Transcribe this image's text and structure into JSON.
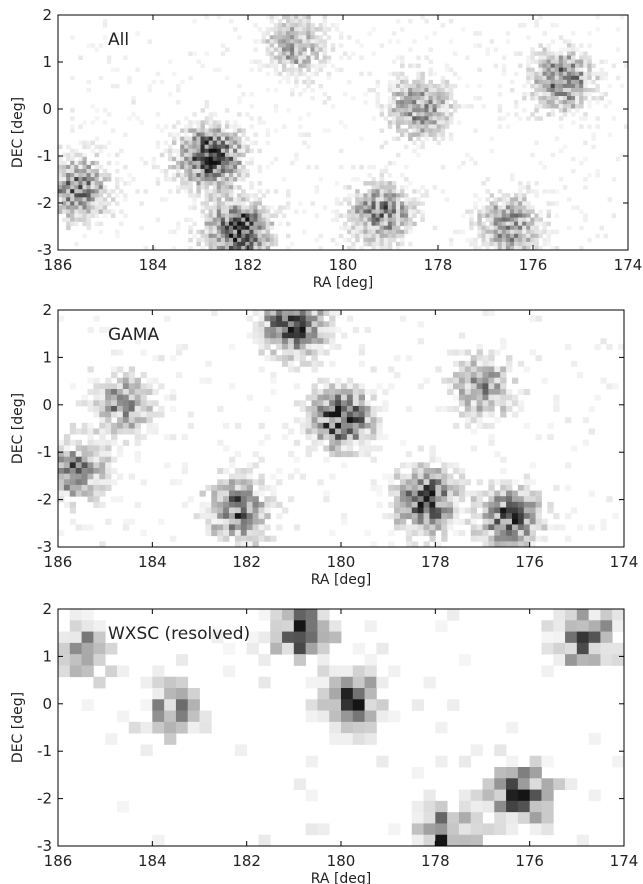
{
  "chart_data": [
    {
      "type": "heatmap",
      "panel_label": "All",
      "xlabel": "RA [deg]",
      "ylabel": "DEC [deg]",
      "xlim": [
        186,
        174
      ],
      "ylim": [
        -3,
        2
      ],
      "xticks": [
        186,
        184,
        182,
        180,
        178,
        176,
        174
      ],
      "yticks": [
        2,
        1,
        0,
        -1,
        -2,
        -3
      ],
      "grid": false,
      "bins": [
        140,
        58
      ],
      "cmap": [
        "#ffffff",
        "#111111"
      ],
      "seed": 7,
      "clusters": [
        {
          "ra": 182.8,
          "dec": -1.0,
          "w": 1.0
        },
        {
          "ra": 182.2,
          "dec": -2.6,
          "w": 1.0
        },
        {
          "ra": 185.6,
          "dec": -1.7,
          "w": 0.7
        },
        {
          "ra": 179.2,
          "dec": -2.2,
          "w": 0.7
        },
        {
          "ra": 176.5,
          "dec": -2.5,
          "w": 0.6
        },
        {
          "ra": 175.4,
          "dec": 0.6,
          "w": 0.7
        },
        {
          "ra": 178.4,
          "dec": 0.0,
          "w": 0.6
        },
        {
          "ra": 181.0,
          "dec": 1.4,
          "w": 0.5
        }
      ]
    },
    {
      "type": "heatmap",
      "panel_label": "GAMA",
      "xlabel": "RA [deg]",
      "ylabel": "DEC [deg]",
      "xlim": [
        186,
        174
      ],
      "ylim": [
        -3,
        2
      ],
      "xticks": [
        186,
        184,
        182,
        180,
        178,
        176,
        174
      ],
      "yticks": [
        2,
        1,
        0,
        -1,
        -2,
        -3
      ],
      "grid": false,
      "bins": [
        96,
        42
      ],
      "cmap": [
        "#ffffff",
        "#141414"
      ],
      "seed": 21,
      "clusters": [
        {
          "ra": 181.0,
          "dec": 1.7,
          "w": 1.0
        },
        {
          "ra": 180.0,
          "dec": -0.3,
          "w": 1.0
        },
        {
          "ra": 178.2,
          "dec": -2.0,
          "w": 1.0
        },
        {
          "ra": 176.4,
          "dec": -2.4,
          "w": 0.9
        },
        {
          "ra": 182.2,
          "dec": -2.2,
          "w": 0.8
        },
        {
          "ra": 185.6,
          "dec": -1.4,
          "w": 0.7
        },
        {
          "ra": 177.0,
          "dec": 0.4,
          "w": 0.6
        },
        {
          "ra": 184.6,
          "dec": 0.0,
          "w": 0.6
        }
      ]
    },
    {
      "type": "heatmap",
      "panel_label": "WXSC (resolved)",
      "xlabel": "RA [deg]",
      "ylabel": "DEC [deg]",
      "xlim": [
        186,
        174
      ],
      "ylim": [
        -3,
        2
      ],
      "xticks": [
        186,
        184,
        182,
        180,
        178,
        176,
        174
      ],
      "yticks": [
        2,
        1,
        0,
        -1,
        -2,
        -3
      ],
      "grid": false,
      "bins": [
        48,
        21
      ],
      "cmap": [
        "#ffffff",
        "#151515"
      ],
      "seed": 5,
      "clusters": [
        {
          "ra": 180.8,
          "dec": 1.6,
          "w": 1.0
        },
        {
          "ra": 179.8,
          "dec": 0.1,
          "w": 0.9
        },
        {
          "ra": 176.2,
          "dec": -1.9,
          "w": 1.0
        },
        {
          "ra": 177.8,
          "dec": -2.8,
          "w": 0.8
        },
        {
          "ra": 174.8,
          "dec": 1.4,
          "w": 0.8
        },
        {
          "ra": 183.6,
          "dec": -0.1,
          "w": 0.6
        },
        {
          "ra": 185.5,
          "dec": 1.2,
          "w": 0.5
        }
      ]
    }
  ]
}
